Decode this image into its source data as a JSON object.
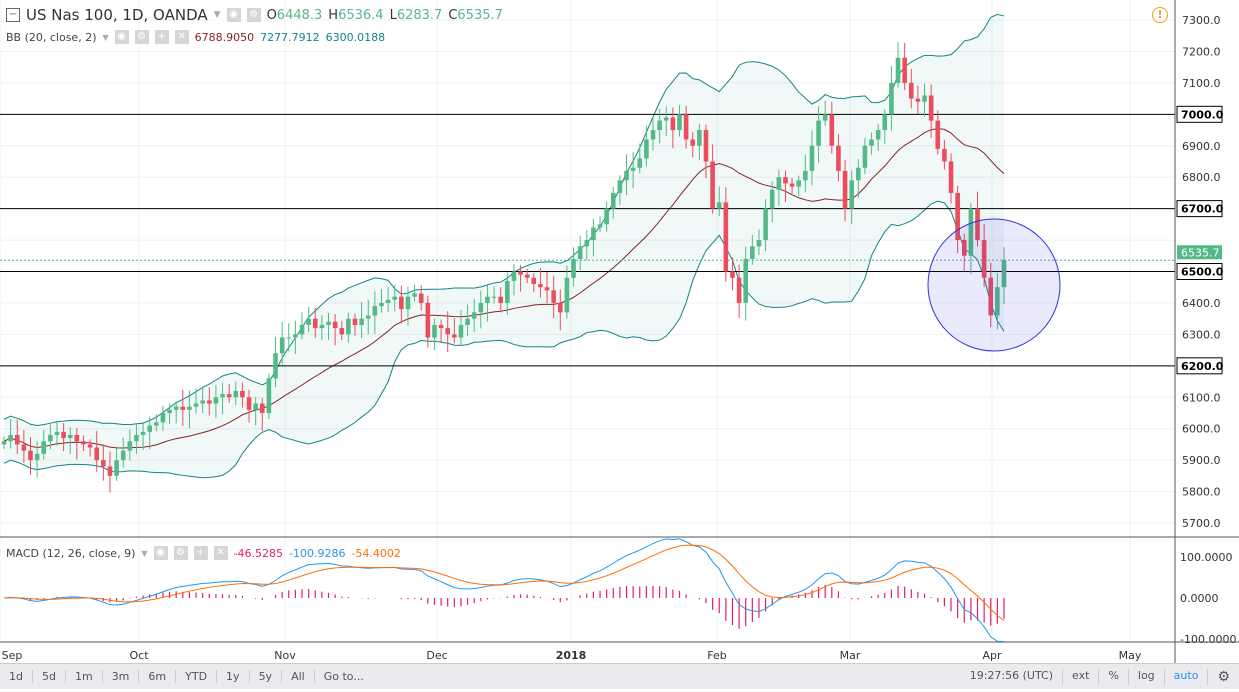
{
  "header": {
    "symbol": "US Nas 100, 1D, OANDA",
    "o_label": "O",
    "open": "6448.3",
    "h_label": "H",
    "high": "6536.4",
    "l_label": "L",
    "low": "6283.7",
    "c_label": "C",
    "close": "6535.7"
  },
  "bb": {
    "label": "BB (20, close, 2)",
    "basis": "6788.9050",
    "upper": "7277.7912",
    "lower": "6300.0188"
  },
  "macd": {
    "label": "MACD (12, 26, close, 9)",
    "hist": "-46.5285",
    "macd": "-100.9286",
    "signal": "-54.4002"
  },
  "toolbar": {
    "ranges": [
      "1d",
      "5d",
      "1m",
      "3m",
      "6m",
      "YTD",
      "1y",
      "5y",
      "All",
      "Go to..."
    ],
    "time": "19:27:56 (UTC)",
    "ext": "ext",
    "pct": "%",
    "log": "log",
    "auto": "auto"
  },
  "colors": {
    "up": "#53b987",
    "down": "#eb4d5c",
    "bb_basis": "#872323",
    "bb_band": "#138484",
    "macd": "#2196f3",
    "signal": "#ff6d00",
    "hist": "#e91e63",
    "circle": "#3030e0"
  },
  "chart_data": {
    "type": "candlestick",
    "x_ticks": [
      "Sep",
      "Oct",
      "Nov",
      "Dec",
      "2018",
      "Feb",
      "Mar",
      "Apr",
      "May"
    ],
    "y_ticks": [
      5700,
      5800,
      5900,
      6000,
      6100,
      6200,
      6300,
      6400,
      6500,
      6600,
      6700,
      6800,
      6900,
      7000,
      7100,
      7200,
      7300
    ],
    "ylim": [
      5650,
      7350
    ],
    "macd_ticks": [
      "100.0000",
      "0.0000",
      "-100.0000"
    ],
    "horizontal_levels": [
      "7000.0",
      "6700.0",
      "6500.0",
      "6200.0"
    ],
    "last_price": "6535.7",
    "closes": [
      5960,
      5980,
      5950,
      5930,
      5900,
      5920,
      5960,
      5980,
      5990,
      5970,
      5980,
      5960,
      5950,
      5940,
      5900,
      5880,
      5850,
      5900,
      5930,
      5960,
      5980,
      5990,
      6010,
      6020,
      6050,
      6060,
      6070,
      6060,
      6070,
      6080,
      6090,
      6080,
      6100,
      6110,
      6100,
      6120,
      6100,
      6060,
      6080,
      6050,
      6160,
      6240,
      6290,
      6290,
      6300,
      6330,
      6350,
      6320,
      6330,
      6340,
      6320,
      6300,
      6350,
      6330,
      6350,
      6360,
      6390,
      6400,
      6410,
      6420,
      6380,
      6420,
      6430,
      6400,
      6290,
      6330,
      6320,
      6300,
      6290,
      6330,
      6350,
      6370,
      6400,
      6420,
      6420,
      6400,
      6470,
      6500,
      6490,
      6480,
      6460,
      6450,
      6440,
      6400,
      6370,
      6480,
      6540,
      6580,
      6600,
      6640,
      6650,
      6700,
      6750,
      6790,
      6820,
      6830,
      6860,
      6920,
      6950,
      6980,
      6990,
      6950,
      7000,
      6920,
      6900,
      6950,
      6850,
      6700,
      6720,
      6500,
      6480,
      6400,
      6540,
      6580,
      6600,
      6700,
      6760,
      6800,
      6780,
      6770,
      6790,
      6820,
      6900,
      6980,
      7000,
      6900,
      6820,
      6700,
      6790,
      6830,
      6900,
      6920,
      6950,
      7000,
      7100,
      7180,
      7100,
      7050,
      7040,
      7060,
      6980,
      6890,
      6850,
      6750,
      6600,
      6550,
      6700,
      6600,
      6480,
      6360,
      6450,
      6536
    ]
  }
}
